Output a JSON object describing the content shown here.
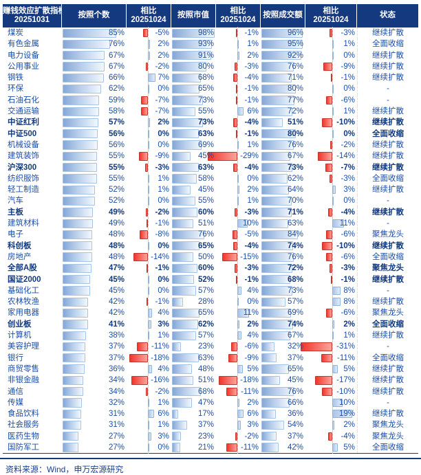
{
  "colors": {
    "header_bg": "#15397e",
    "text_blue": "#1d4ea5",
    "bold_blue": "#123a7c",
    "bar_border": "#a6c3e6",
    "neg_border": "#c7362d",
    "pos_border": "#8fb4dc"
  },
  "footer": {
    "source": "资料来源：Wind，申万宏源研究"
  },
  "chart_data": {
    "type": "table",
    "title": "赚钱效应扩散指标",
    "date": "20251031",
    "compare_date": "20251024",
    "header": {
      "title": [
        "赚钱效应扩散指标",
        "20251031"
      ],
      "columns": [
        {
          "label": "按照个数"
        },
        {
          "label": "相比",
          "sub": "20251024"
        },
        {
          "label": "按照市值"
        },
        {
          "label": "相比",
          "sub": "20251024"
        },
        {
          "label": "按照成交额"
        },
        {
          "label": "相比",
          "sub": "20251024"
        },
        {
          "label": "状态"
        }
      ]
    },
    "legend": {
      "positive_bar": "blue",
      "negative_bar": "red",
      "unit": "%"
    },
    "rows": [
      {
        "name": "煤炭",
        "bold": false,
        "count": 85,
        "count_chg": -5,
        "mcap": 98,
        "mcap_chg": -1,
        "amount": 96,
        "amount_chg": -3,
        "status": "继续扩散"
      },
      {
        "name": "有色金属",
        "bold": false,
        "count": 76,
        "count_chg": 2,
        "mcap": 93,
        "mcap_chg": 1,
        "amount": 95,
        "amount_chg": 1,
        "status": "全面收缩"
      },
      {
        "name": "电力设备",
        "bold": false,
        "count": 67,
        "count_chg": 2,
        "mcap": 91,
        "mcap_chg": 2,
        "amount": 92,
        "amount_chg": 0,
        "status": "继续扩散"
      },
      {
        "name": "公用事业",
        "bold": false,
        "count": 67,
        "count_chg": -2,
        "mcap": 80,
        "mcap_chg": -3,
        "amount": 76,
        "amount_chg": -9,
        "status": "继续扩散"
      },
      {
        "name": "钢铁",
        "bold": false,
        "count": 66,
        "count_chg": 7,
        "mcap": 68,
        "mcap_chg": -4,
        "amount": 71,
        "amount_chg": -1,
        "status": "继续扩散"
      },
      {
        "name": "环保",
        "bold": false,
        "count": 62,
        "count_chg": 0,
        "mcap": 65,
        "mcap_chg": -1,
        "amount": 80,
        "amount_chg": 0,
        "status": "-"
      },
      {
        "name": "石油石化",
        "bold": false,
        "count": 59,
        "count_chg": -7,
        "mcap": 73,
        "mcap_chg": -1,
        "amount": 77,
        "amount_chg": -6,
        "status": "-"
      },
      {
        "name": "交通运输",
        "bold": false,
        "count": 58,
        "count_chg": -7,
        "mcap": 55,
        "mcap_chg": 6,
        "amount": 72,
        "amount_chg": 1,
        "status": "继续扩散"
      },
      {
        "name": "中证红利",
        "bold": true,
        "count": 57,
        "count_chg": 2,
        "mcap": 73,
        "mcap_chg": -4,
        "amount": 51,
        "amount_chg": -10,
        "status": "继续扩散"
      },
      {
        "name": "中证500",
        "bold": true,
        "count": 56,
        "count_chg": 0,
        "mcap": 63,
        "mcap_chg": -1,
        "amount": 80,
        "amount_chg": 0,
        "status": "全面收缩"
      },
      {
        "name": "机械设备",
        "bold": false,
        "count": 56,
        "count_chg": 0,
        "mcap": 69,
        "mcap_chg": 1,
        "amount": 76,
        "amount_chg": -2,
        "status": "继续扩散"
      },
      {
        "name": "建筑装饰",
        "bold": false,
        "count": 55,
        "count_chg": -9,
        "mcap": 45,
        "mcap_chg": -29,
        "amount": 67,
        "amount_chg": -14,
        "status": "继续扩散"
      },
      {
        "name": "沪深300",
        "bold": true,
        "count": 55,
        "count_chg": -3,
        "mcap": 63,
        "mcap_chg": -4,
        "amount": 73,
        "amount_chg": -7,
        "status": "继续扩散"
      },
      {
        "name": "纺织服饰",
        "bold": false,
        "count": 55,
        "count_chg": 1,
        "mcap": 58,
        "mcap_chg": 0,
        "amount": 62,
        "amount_chg": -3,
        "status": "全面收缩"
      },
      {
        "name": "轻工制造",
        "bold": false,
        "count": 52,
        "count_chg": 1,
        "mcap": 45,
        "mcap_chg": 2,
        "amount": 64,
        "amount_chg": 3,
        "status": "继续扩散"
      },
      {
        "name": "汽车",
        "bold": false,
        "count": 52,
        "count_chg": 0,
        "mcap": 55,
        "mcap_chg": 1,
        "amount": 70,
        "amount_chg": 0,
        "status": "-"
      },
      {
        "name": "主板",
        "bold": true,
        "count": 49,
        "count_chg": -2,
        "mcap": 60,
        "mcap_chg": -3,
        "amount": 71,
        "amount_chg": -4,
        "status": "继续扩散"
      },
      {
        "name": "建筑材料",
        "bold": false,
        "count": 49,
        "count_chg": -1,
        "mcap": 51,
        "mcap_chg": 10,
        "amount": 63,
        "amount_chg": 11,
        "status": "-"
      },
      {
        "name": "电子",
        "bold": false,
        "count": 48,
        "count_chg": -8,
        "mcap": 76,
        "mcap_chg": -5,
        "amount": 84,
        "amount_chg": -6,
        "status": "聚焦龙头"
      },
      {
        "name": "科创板",
        "bold": true,
        "count": 48,
        "count_chg": 0,
        "mcap": 65,
        "mcap_chg": -4,
        "amount": 74,
        "amount_chg": -10,
        "status": "继续扩散"
      },
      {
        "name": "房地产",
        "bold": false,
        "count": 48,
        "count_chg": -14,
        "mcap": 50,
        "mcap_chg": -15,
        "amount": 76,
        "amount_chg": -6,
        "status": "全面收缩"
      },
      {
        "name": "全部A股",
        "bold": true,
        "count": 47,
        "count_chg": -1,
        "mcap": 60,
        "mcap_chg": -3,
        "amount": 72,
        "amount_chg": -3,
        "status": "聚焦龙头"
      },
      {
        "name": "国证2000",
        "bold": true,
        "count": 45,
        "count_chg": 0,
        "mcap": 52,
        "mcap_chg": -1,
        "amount": 68,
        "amount_chg": -1,
        "status": "继续扩散"
      },
      {
        "name": "基础化工",
        "bold": false,
        "count": 45,
        "count_chg": 0,
        "mcap": 57,
        "mcap_chg": 4,
        "amount": 73,
        "amount_chg": 8,
        "status": "-"
      },
      {
        "name": "农林牧渔",
        "bold": false,
        "count": 42,
        "count_chg": -1,
        "mcap": 28,
        "mcap_chg": 0,
        "amount": 57,
        "amount_chg": 8,
        "status": "继续扩散"
      },
      {
        "name": "家用电器",
        "bold": false,
        "count": 42,
        "count_chg": 4,
        "mcap": 65,
        "mcap_chg": 11,
        "amount": 69,
        "amount_chg": -6,
        "status": "聚焦龙头"
      },
      {
        "name": "创业板",
        "bold": true,
        "count": 41,
        "count_chg": 3,
        "mcap": 62,
        "mcap_chg": 2,
        "amount": 74,
        "amount_chg": 2,
        "status": "全面收缩"
      },
      {
        "name": "计算机",
        "bold": false,
        "count": 38,
        "count_chg": 1,
        "mcap": 57,
        "mcap_chg": 4,
        "amount": 67,
        "amount_chg": 1,
        "status": "继续扩散"
      },
      {
        "name": "美容护理",
        "bold": false,
        "count": 37,
        "count_chg": -11,
        "mcap": 23,
        "mcap_chg": -6,
        "amount": 32,
        "amount_chg": -31,
        "status": "-"
      },
      {
        "name": "银行",
        "bold": false,
        "count": 37,
        "count_chg": -18,
        "mcap": 63,
        "mcap_chg": -9,
        "amount": 37,
        "amount_chg": -11,
        "status": "全面收缩"
      },
      {
        "name": "商贸零售",
        "bold": false,
        "count": 36,
        "count_chg": 4,
        "mcap": 48,
        "mcap_chg": 5,
        "amount": 65,
        "amount_chg": 5,
        "status": "继续扩散"
      },
      {
        "name": "非银金融",
        "bold": false,
        "count": 34,
        "count_chg": -16,
        "mcap": 51,
        "mcap_chg": -18,
        "amount": 45,
        "amount_chg": -17,
        "status": "继续扩散"
      },
      {
        "name": "通信",
        "bold": false,
        "count": 34,
        "count_chg": -2,
        "mcap": 68,
        "mcap_chg": -11,
        "amount": 76,
        "amount_chg": -10,
        "status": "继续扩散"
      },
      {
        "name": "传媒",
        "bold": false,
        "count": 32,
        "count_chg": 1,
        "mcap": 47,
        "mcap_chg": 2,
        "amount": 66,
        "amount_chg": 10,
        "status": "-"
      },
      {
        "name": "食品饮料",
        "bold": false,
        "count": 31,
        "count_chg": 6,
        "mcap": 17,
        "mcap_chg": 6,
        "amount": 36,
        "amount_chg": 19,
        "status": "继续扩散"
      },
      {
        "name": "社会服务",
        "bold": false,
        "count": 31,
        "count_chg": 1,
        "mcap": 37,
        "mcap_chg": 3,
        "amount": 54,
        "amount_chg": 2,
        "status": "聚焦龙头"
      },
      {
        "name": "医药生物",
        "bold": false,
        "count": 27,
        "count_chg": 3,
        "mcap": 23,
        "mcap_chg": -2,
        "amount": 37,
        "amount_chg": -4,
        "status": "聚焦龙头"
      },
      {
        "name": "国防军工",
        "bold": false,
        "count": 27,
        "count_chg": 0,
        "mcap": 21,
        "mcap_chg": -11,
        "amount": 42,
        "amount_chg": 5,
        "status": "全面收缩"
      }
    ]
  }
}
